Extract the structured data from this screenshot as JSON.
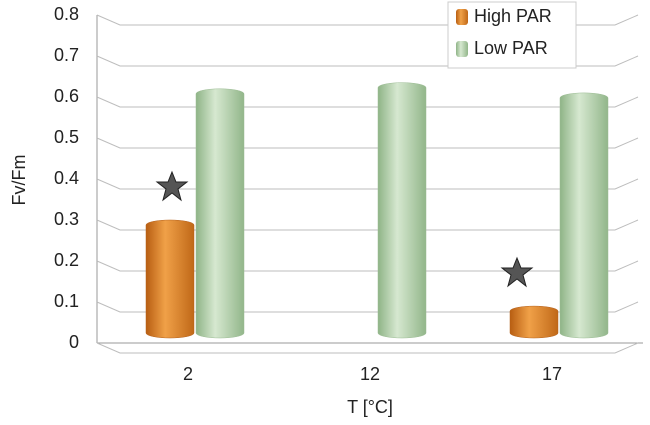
{
  "chart_data": {
    "type": "bar",
    "x_label": "T [°C]",
    "y_label": "Fv/Fm",
    "categories": [
      "2",
      "12",
      "17"
    ],
    "series": [
      {
        "name": "High PAR",
        "color": "#e0852a",
        "values": [
          0.3,
          null,
          0.09
        ]
      },
      {
        "name": "Low PAR",
        "color": "#b5d2ad",
        "values": [
          0.62,
          0.635,
          0.61
        ]
      }
    ],
    "ylim": [
      0,
      0.8
    ],
    "yticks": [
      0,
      0.1,
      0.2,
      0.3,
      0.4,
      0.5,
      0.6,
      0.7,
      0.8
    ],
    "grid": true,
    "legend": "top-right"
  }
}
